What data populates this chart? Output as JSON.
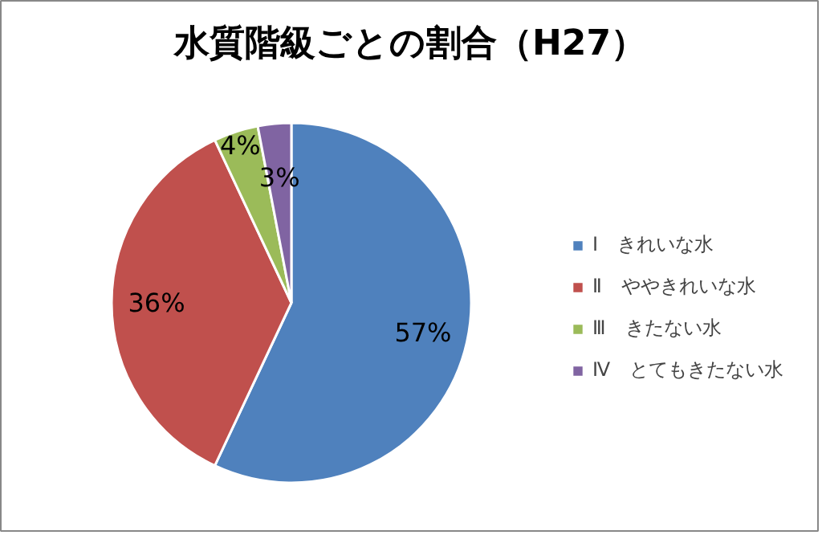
{
  "chart_data": {
    "type": "pie",
    "title": "水質階級ごとの割合（H27）",
    "categories": [
      "Ⅰ　きれいな水",
      "Ⅱ　ややきれいな水",
      "Ⅲ　きたない水",
      "Ⅳ　とてもきたない水"
    ],
    "values": [
      57,
      36,
      4,
      3
    ],
    "colors": [
      "#4f81bd",
      "#c0504d",
      "#9bbb59",
      "#8064a2"
    ],
    "value_labels": [
      "57%",
      "36%",
      "4%",
      "3%"
    ],
    "legend": "right"
  }
}
